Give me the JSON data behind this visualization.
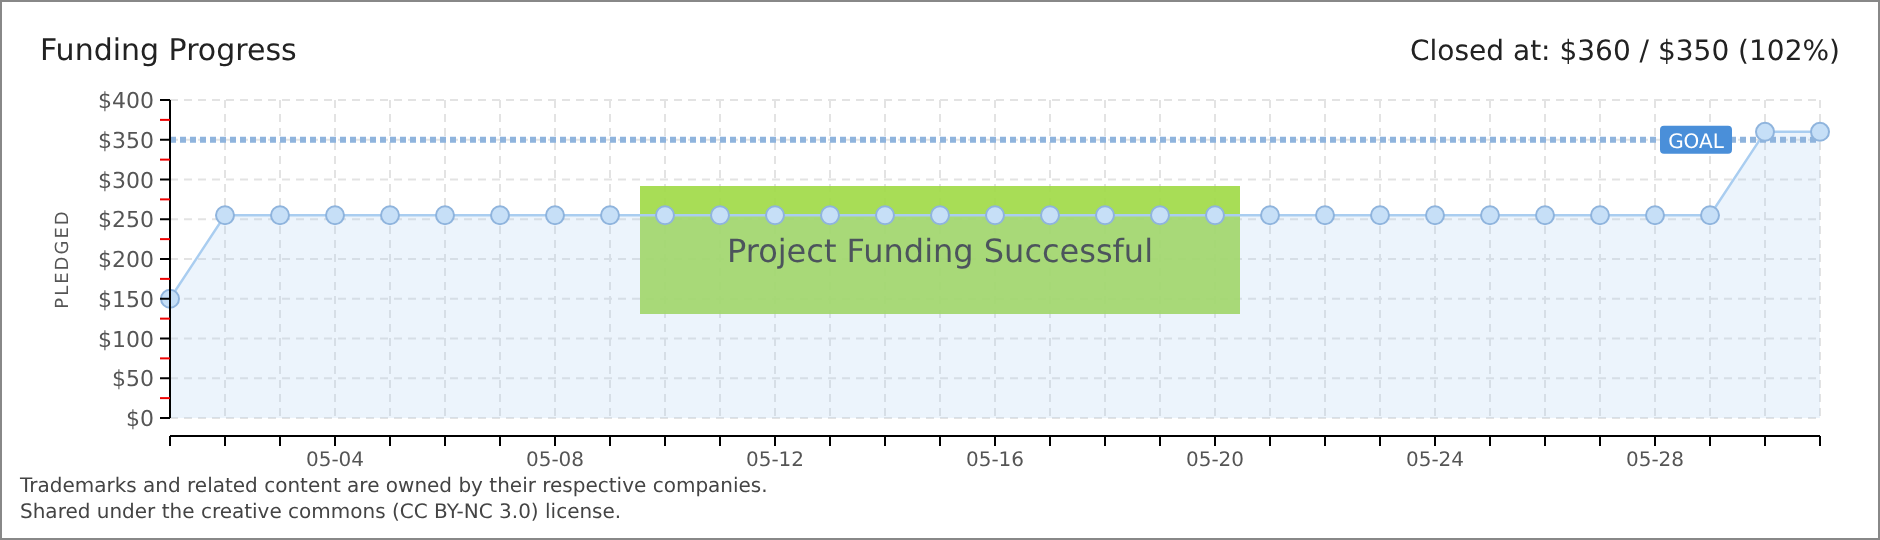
{
  "chart_data": {
    "type": "area",
    "title": "Funding Progress",
    "subtitle": "Closed at: $360 / $350 (102%)",
    "ylabel": "PLEDGED",
    "x": [
      "--05-01",
      "--05-02",
      "--05-03",
      "--05-04",
      "--05-05",
      "--05-06",
      "--05-07",
      "--05-08",
      "--05-09",
      "--05-10",
      "--05-11",
      "--05-12",
      "--05-13",
      "--05-14",
      "--05-15",
      "--05-16",
      "--05-17",
      "--05-18",
      "--05-19",
      "--05-20",
      "--05-21",
      "--05-22",
      "--05-23",
      "--05-24",
      "--05-25",
      "--05-26",
      "--05-27",
      "--05-28",
      "--05-29",
      "--05-30",
      "--05-31"
    ],
    "series": [
      {
        "color": "#a9cdf0",
        "values": [
          150,
          255,
          255,
          255,
          255,
          255,
          255,
          255,
          255,
          255,
          255,
          255,
          255,
          255,
          255,
          255,
          255,
          255,
          255,
          255,
          255,
          255,
          255,
          255,
          255,
          255,
          255,
          255,
          255,
          360,
          360
        ]
      }
    ],
    "xlim": [
      "--05-01",
      "--05-31"
    ],
    "xticks": [
      {
        "value": "--05-01",
        "label": null
      },
      {
        "value": "--05-02",
        "label": null
      },
      {
        "value": "--05-03",
        "label": null
      },
      {
        "value": "--05-04",
        "label": "05-04"
      },
      {
        "value": "--05-05",
        "label": null
      },
      {
        "value": "--05-06",
        "label": null
      },
      {
        "value": "--05-07",
        "label": null
      },
      {
        "value": "--05-08",
        "label": "05-08"
      },
      {
        "value": "--05-09",
        "label": null
      },
      {
        "value": "--05-10",
        "label": null
      },
      {
        "value": "--05-11",
        "label": null
      },
      {
        "value": "--05-12",
        "label": "05-12"
      },
      {
        "value": "--05-13",
        "label": null
      },
      {
        "value": "--05-14",
        "label": null
      },
      {
        "value": "--05-15",
        "label": null
      },
      {
        "value": "--05-16",
        "label": "05-16"
      },
      {
        "value": "--05-17",
        "label": null
      },
      {
        "value": "--05-18",
        "label": null
      },
      {
        "value": "--05-19",
        "label": null
      },
      {
        "value": "--05-20",
        "label": "05-20"
      },
      {
        "value": "--05-21",
        "label": null
      },
      {
        "value": "--05-22",
        "label": null
      },
      {
        "value": "--05-23",
        "label": null
      },
      {
        "value": "--05-24",
        "label": "05-24"
      },
      {
        "value": "--05-25",
        "label": null
      },
      {
        "value": "--05-26",
        "label": null
      },
      {
        "value": "--05-27",
        "label": null
      },
      {
        "value": "--05-28",
        "label": "05-28"
      },
      {
        "value": "--05-29",
        "label": null
      },
      {
        "value": "--05-30",
        "label": null
      },
      {
        "value": "--05-31",
        "label": null
      }
    ],
    "ylim": [
      0,
      400
    ],
    "yticks": [
      {
        "value": 0,
        "label": "$0"
      },
      {
        "value": 25,
        "label": null
      },
      {
        "value": 50,
        "label": "$50"
      },
      {
        "value": 75,
        "label": null
      },
      {
        "value": 100,
        "label": "$100"
      },
      {
        "value": 125,
        "label": null
      },
      {
        "value": 150,
        "label": "$150"
      },
      {
        "value": 175,
        "label": null
      },
      {
        "value": 200,
        "label": "$200"
      },
      {
        "value": 225,
        "label": null
      },
      {
        "value": 250,
        "label": "$250"
      },
      {
        "value": 275,
        "label": null
      },
      {
        "value": 300,
        "label": "$300"
      },
      {
        "value": 325,
        "label": null
      },
      {
        "value": 350,
        "label": "$350"
      },
      {
        "value": 375,
        "label": null
      },
      {
        "value": 400,
        "label": "$400"
      }
    ],
    "grid": true,
    "marker": "circle",
    "ref_lines": [
      {
        "axis": "y",
        "value": 350,
        "label": "GOAL",
        "color": "#8fb4dd",
        "line_style": "dotted"
      }
    ],
    "annotations": [
      "Project Funding Successful",
      "Trademarks and related content are owned by their respective companies.",
      "Shared under the creative commons (CC BY-NC 3.0) license."
    ]
  }
}
